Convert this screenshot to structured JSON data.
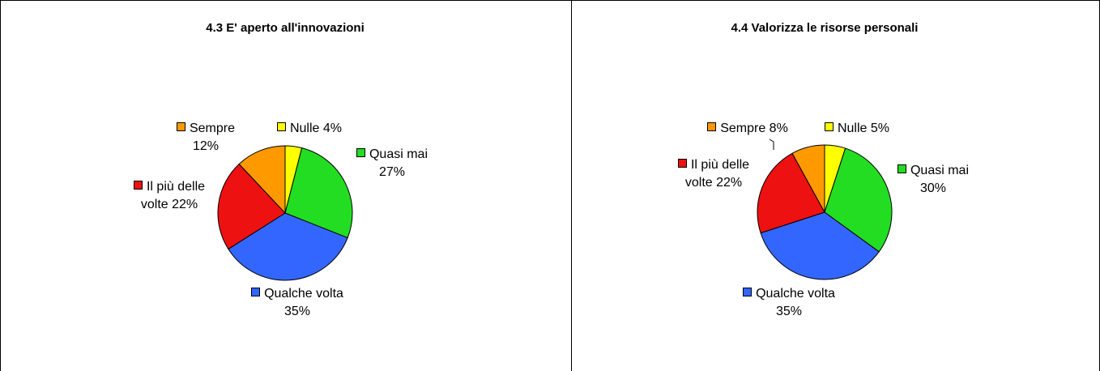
{
  "chart_data": [
    {
      "type": "pie",
      "title": "4.3 E' aperto  all'innovazioni",
      "categories": [
        "Nulle",
        "Quasi mai",
        "Qualche volta",
        "Il più delle volte",
        "Sempre"
      ],
      "values": [
        4,
        27,
        35,
        22,
        12
      ],
      "value_labels": [
        "4%",
        "27%",
        "35%",
        "22%",
        "12%"
      ],
      "colors": [
        "#ffff00",
        "#22dd22",
        "#3366ff",
        "#ee1111",
        "#ff9900"
      ]
    },
    {
      "type": "pie",
      "title": "4.4 Valorizza le risorse personali",
      "categories": [
        "Nulle",
        "Quasi mai",
        "Qualche volta",
        "Il più delle volte",
        "Sempre"
      ],
      "values": [
        5,
        30,
        35,
        22,
        8
      ],
      "value_labels": [
        "5%",
        "30%",
        "35%",
        "22%",
        "8%"
      ],
      "colors": [
        "#ffff00",
        "#22dd22",
        "#3366ff",
        "#ee1111",
        "#ff9900"
      ]
    }
  ]
}
